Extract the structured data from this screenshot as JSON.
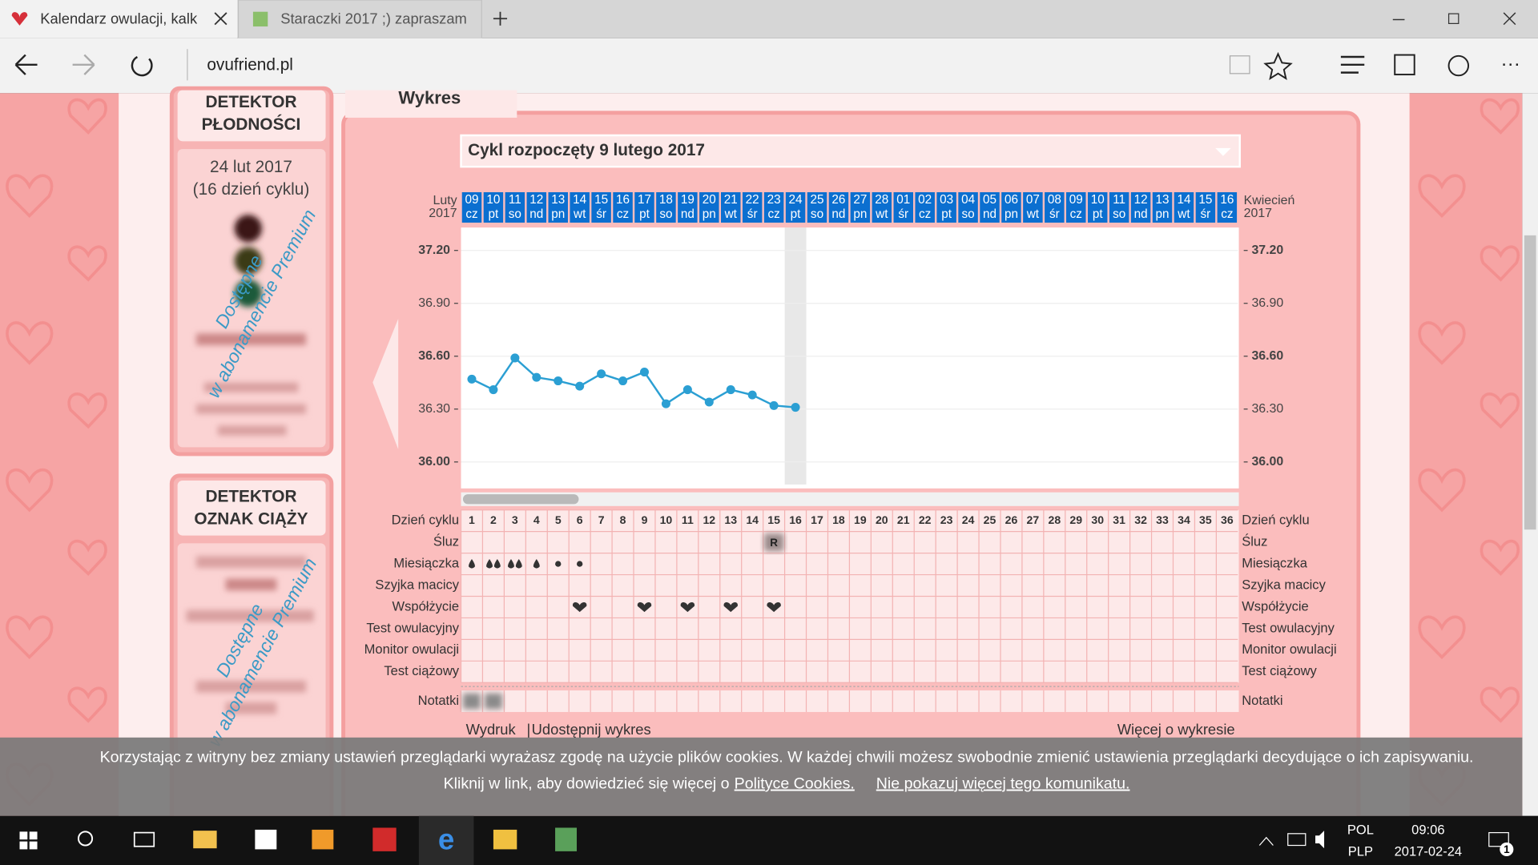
{
  "browser": {
    "tabs": [
      "Kalendarz owulacji, kalk",
      "Staraczki 2017 ;) zapraszam"
    ],
    "address": "ovufriend.pl"
  },
  "sidebar": {
    "fertility": {
      "title_lines": [
        "DETEKTOR",
        "PŁODNOŚCI"
      ],
      "date": "24 lut 2017",
      "cycle_day": "(16 dzień cyklu)",
      "premium_lines": [
        "Dostępne",
        "w abonamencie Premium"
      ]
    },
    "pregnancy": {
      "title_lines": [
        "DETEKTOR",
        "OZNAK CIĄŻY"
      ],
      "premium_lines": [
        "Dostępne",
        "w abonamencie Premium"
      ]
    }
  },
  "panel": {
    "tab": "Wykres",
    "cycle_select": "Cykl rozpoczęty 9 lutego 2017",
    "print": "Wydruk",
    "separator": "|",
    "share": "Udostępnij wykres",
    "more": "Więcej o wykresie"
  },
  "chart_data": {
    "type": "line",
    "month_start": {
      "month": "Luty",
      "year": "2017"
    },
    "month_end": {
      "month": "Kwiecień",
      "year": "2017"
    },
    "dates": [
      "09",
      "10",
      "11",
      "12",
      "13",
      "14",
      "15",
      "16",
      "17",
      "18",
      "19",
      "20",
      "21",
      "22",
      "23",
      "24",
      "25",
      "26",
      "27",
      "28",
      "01",
      "02",
      "03",
      "04",
      "05",
      "06",
      "07",
      "08",
      "09",
      "10",
      "11",
      "12",
      "13",
      "14",
      "15",
      "16"
    ],
    "weekdays": [
      "cz",
      "pt",
      "so",
      "nd",
      "pn",
      "wt",
      "śr",
      "cz",
      "pt",
      "so",
      "nd",
      "pn",
      "wt",
      "śr",
      "cz",
      "pt",
      "so",
      "nd",
      "pn",
      "wt",
      "śr",
      "cz",
      "pt",
      "so",
      "nd",
      "pn",
      "wt",
      "śr",
      "cz",
      "pt",
      "so",
      "nd",
      "pn",
      "wt",
      "śr",
      "cz"
    ],
    "x": [
      1,
      2,
      3,
      4,
      5,
      6,
      7,
      8,
      9,
      10,
      11,
      12,
      13,
      14,
      15,
      16
    ],
    "series": [
      {
        "color": "#2b9fd3",
        "values": [
          36.47,
          36.41,
          36.59,
          36.48,
          36.46,
          36.43,
          36.5,
          36.46,
          36.51,
          36.33,
          36.41,
          36.34,
          36.41,
          36.38,
          36.32,
          36.31
        ]
      }
    ],
    "xlim": [
      0.5,
      36.5
    ],
    "ylim": [
      35.85,
      37.33
    ],
    "yticks": [
      {
        "value": 37.2,
        "label": "37.20"
      },
      {
        "value": 36.9,
        "label": "36.90"
      },
      {
        "value": 36.6,
        "label": "36.60"
      },
      {
        "value": 36.3,
        "label": "36.30"
      },
      {
        "value": 36,
        "label": "36.00"
      }
    ],
    "grid": true,
    "highlight_day": 16
  },
  "cycle_table": {
    "row_labels": [
      "Dzień cyklu",
      "Śluz",
      "Miesiączka",
      "Szyjka macicy",
      "Współżycie",
      "Test owulacyjny",
      "Monitor owulacji",
      "Test ciążowy",
      "Notatki"
    ],
    "days": [
      1,
      2,
      3,
      4,
      5,
      6,
      7,
      8,
      9,
      10,
      11,
      12,
      13,
      14,
      15,
      16,
      17,
      18,
      19,
      20,
      21,
      22,
      23,
      24,
      25,
      26,
      27,
      28,
      29,
      30,
      31,
      32,
      33,
      34,
      35,
      36
    ],
    "menstruation_drops": [
      1,
      2,
      2,
      1
    ],
    "spotting_days": [
      5,
      6
    ],
    "intercourse_days": [
      6,
      9,
      11,
      13,
      15
    ],
    "mucus": {
      "day": 15,
      "label": "R"
    },
    "notes_days": [
      1,
      2
    ]
  },
  "cookie": {
    "line1": "Korzystając z witryny bez zmiany ustawień przeglądarki wyrażasz zgodę na użycie plików cookies. W każdej chwili możesz swobodnie zmienić ustawienia przeglądarki decydujące o ich zapisywaniu.",
    "line2": "Kliknij w link, aby dowiedzieć się więcej o",
    "link1": "Polityce Cookies.",
    "link2": "Nie pokazuj więcej tego komunikatu."
  },
  "taskbar": {
    "lang": "POL",
    "layout": "PLP",
    "time": "09:06",
    "date": "2017-02-24",
    "notifications": 1
  }
}
